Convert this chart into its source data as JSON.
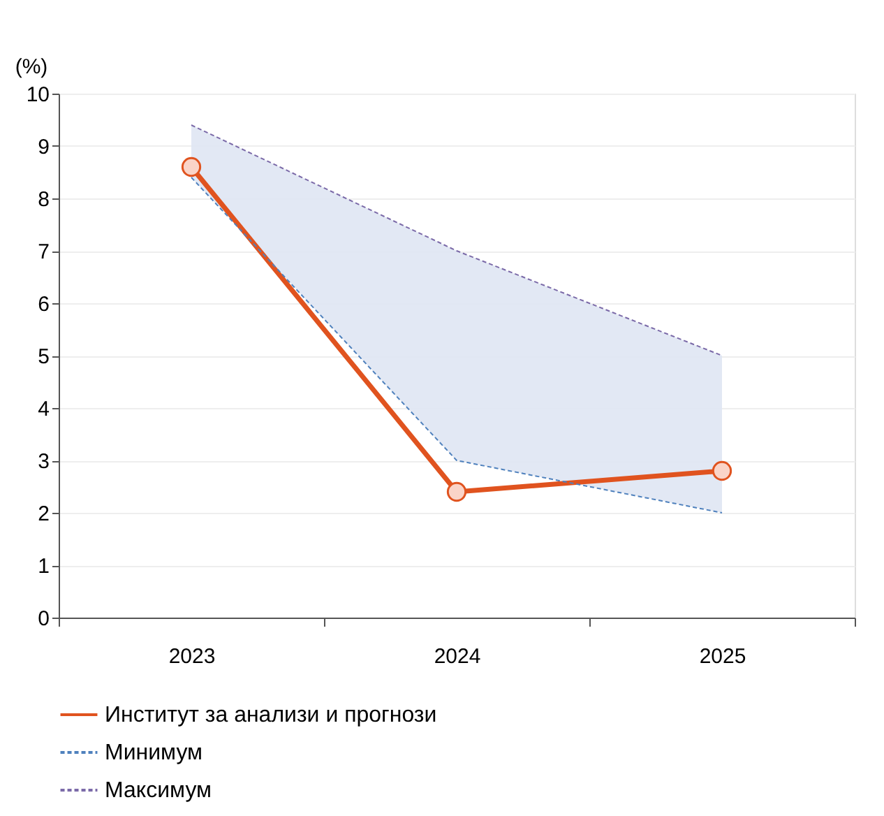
{
  "chart_data": {
    "type": "line",
    "ylabel": "(%)",
    "categories": [
      "2023",
      "2024",
      "2025"
    ],
    "series": [
      {
        "name": "Институт за анализи и прогнози",
        "color": "#e0531f",
        "values": [
          8.6,
          2.4,
          2.8
        ],
        "marker": "circle",
        "line_style": "solid",
        "lower": [
          8.4,
          3.0,
          2.0
        ],
        "upper": [
          9.4,
          7.0,
          5.0
        ]
      },
      {
        "name": "Минимум",
        "color": "#4f81bd",
        "values": [
          8.4,
          3.0,
          2.0
        ],
        "marker": "none",
        "line_style": "dashed"
      },
      {
        "name": "Максимум",
        "color": "#7b6aa8",
        "values": [
          9.4,
          7.0,
          5.0
        ],
        "marker": "none",
        "line_style": "dashed"
      }
    ],
    "ylim": [
      0,
      10
    ],
    "yticks": [
      0,
      1,
      2,
      3,
      4,
      5,
      6,
      7,
      8,
      9,
      10
    ],
    "grid": "y",
    "legend": "bottom"
  }
}
